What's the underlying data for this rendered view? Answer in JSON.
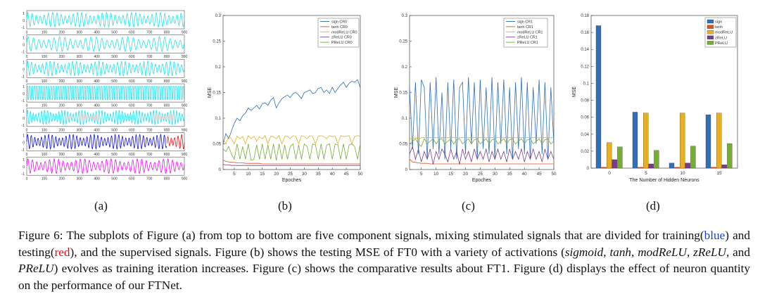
{
  "panel_labels": [
    "(a)",
    "(b)",
    "(c)",
    "(d)"
  ],
  "caption": {
    "fig_label": "Figure 6:",
    "part1": " The subplots of Figure (a) from top to bottom are five component signals, mixing stimulated signals that are divided for training(",
    "blue_word": "blue",
    "part2": ") and testing(",
    "red_word": "red",
    "part3": "), and the supervised signals. Figure (b) shows the testing MSE of FT0 with a variety of activations (",
    "act_sigmoid": "sigmoid",
    "sep1": ", ",
    "act_tanh": "tanh",
    "sep2": ", ",
    "act_modrelu": "modReLU",
    "sep3": ", ",
    "act_zrelu": "zReLU",
    "sep4": ", and ",
    "act_prelu": "PReLU",
    "part4": ") evolves as training iteration increases. Figure (c) shows the comparative results about FT1. Figure (d) displays the effect of neuron quantity on the performance of our FTNet."
  },
  "colors": {
    "cyan": "#22e0ee",
    "blue": "#1010e0",
    "red": "#ee1010",
    "magenta": "#ee10ee",
    "sign": "#2f6fb8",
    "tanh": "#e0501a",
    "modrelu": "#e8b020",
    "zrelu": "#7a3b8f",
    "prelu": "#77ad33"
  },
  "chart_data": [
    {
      "type": "line",
      "panel": "a",
      "subplots": 7,
      "x_ticks": [
        "0",
        "100",
        "200",
        "300",
        "400",
        "500",
        "600",
        "700",
        "800",
        "900"
      ],
      "y_ticks": [
        "1",
        "0",
        "-1"
      ],
      "xlim": [
        0,
        900
      ],
      "series_colors": [
        "cyan",
        "cyan",
        "cyan",
        "cyan",
        "cyan",
        "blue+red",
        "magenta"
      ],
      "split_at": 800
    },
    {
      "type": "line",
      "panel": "b",
      "xlabel": "Epoches",
      "ylabel": "MSE",
      "xlim": [
        1,
        50
      ],
      "ylim": [
        0,
        0.3
      ],
      "x_ticks": [
        5,
        10,
        15,
        20,
        25,
        30,
        35,
        40,
        45,
        50
      ],
      "y_ticks": [
        "0",
        "0.05",
        "0.1",
        "0.15",
        "0.2",
        "0.25",
        "0.3"
      ],
      "legend_position": "top-right",
      "series": [
        {
          "name": "sign CR0",
          "color": "sign",
          "values": [
            0.05,
            0.07,
            0.06,
            0.075,
            0.09,
            0.1,
            0.095,
            0.105,
            0.11,
            0.12,
            0.115,
            0.12,
            0.125,
            0.118,
            0.128,
            0.13,
            0.125,
            0.135,
            0.14,
            0.12,
            0.13,
            0.138,
            0.142,
            0.145,
            0.14,
            0.148,
            0.15,
            0.145,
            0.138,
            0.15,
            0.152,
            0.155,
            0.148,
            0.15,
            0.158,
            0.16,
            0.15,
            0.155,
            0.148,
            0.16,
            0.15,
            0.158,
            0.165,
            0.17,
            0.16,
            0.168,
            0.172,
            0.17,
            0.175,
            0.16
          ]
        },
        {
          "name": "tanh CR0",
          "color": "tanh",
          "values": [
            0.018,
            0.016,
            0.015,
            0.014,
            0.014,
            0.013,
            0.013,
            0.013,
            0.012,
            0.012,
            0.012,
            0.012,
            0.012,
            0.012,
            0.011,
            0.011,
            0.011,
            0.011,
            0.011,
            0.011,
            0.011,
            0.011,
            0.011,
            0.011,
            0.011,
            0.011,
            0.011,
            0.011,
            0.011,
            0.011,
            0.011,
            0.011,
            0.011,
            0.011,
            0.011,
            0.011,
            0.011,
            0.011,
            0.011,
            0.011,
            0.011,
            0.011,
            0.011,
            0.011,
            0.011,
            0.011,
            0.011,
            0.011,
            0.011,
            0.011
          ]
        },
        {
          "name": "modReLU CR0",
          "color": "modrelu",
          "values": [
            0.06,
            0.05,
            0.065,
            0.06,
            0.05,
            0.065,
            0.06,
            0.064,
            0.05,
            0.066,
            0.06,
            0.065,
            0.055,
            0.064,
            0.06,
            0.066,
            0.05,
            0.065,
            0.064,
            0.06,
            0.066,
            0.05,
            0.064,
            0.065,
            0.06,
            0.066,
            0.064,
            0.05,
            0.066,
            0.064,
            0.06,
            0.066,
            0.064,
            0.05,
            0.065,
            0.066,
            0.064,
            0.06,
            0.066,
            0.064,
            0.065,
            0.05,
            0.066,
            0.064,
            0.065,
            0.066,
            0.05,
            0.064,
            0.066,
            0.065
          ]
        },
        {
          "name": "zReLU CR0",
          "color": "zrelu",
          "values": [
            0.01,
            0.009,
            0.009,
            0.008,
            0.008,
            0.008,
            0.008,
            0.008,
            0.008,
            0.008,
            0.008,
            0.008,
            0.008,
            0.008,
            0.008,
            0.008,
            0.008,
            0.008,
            0.008,
            0.008,
            0.008,
            0.008,
            0.008,
            0.008,
            0.008,
            0.008,
            0.008,
            0.008,
            0.008,
            0.008,
            0.008,
            0.008,
            0.008,
            0.008,
            0.008,
            0.008,
            0.008,
            0.008,
            0.008,
            0.008,
            0.008,
            0.008,
            0.008,
            0.008,
            0.008,
            0.008,
            0.008,
            0.008,
            0.008,
            0.008
          ]
        },
        {
          "name": "PReLU CR0",
          "color": "prelu",
          "values": [
            0.04,
            0.035,
            0.045,
            0.03,
            0.02,
            0.05,
            0.02,
            0.045,
            0.02,
            0.05,
            0.018,
            0.02,
            0.048,
            0.02,
            0.05,
            0.02,
            0.048,
            0.02,
            0.05,
            0.018,
            0.05,
            0.02,
            0.048,
            0.02,
            0.045,
            0.05,
            0.02,
            0.048,
            0.02,
            0.05,
            0.045,
            0.02,
            0.05,
            0.048,
            0.02,
            0.05,
            0.02,
            0.048,
            0.05,
            0.02,
            0.05,
            0.048,
            0.02,
            0.05,
            0.02,
            0.048,
            0.05,
            0.045,
            0.02,
            0.05
          ]
        }
      ]
    },
    {
      "type": "line",
      "panel": "c",
      "xlabel": "Epoches",
      "ylabel": "MSE",
      "xlim": [
        1,
        50
      ],
      "ylim": [
        0,
        0.3
      ],
      "x_ticks": [
        5,
        10,
        15,
        20,
        25,
        30,
        35,
        40,
        45,
        50
      ],
      "y_ticks": [
        "0",
        "0.05",
        "0.1",
        "0.15",
        "0.2",
        "0.25",
        "0.3"
      ],
      "legend_position": "top-right",
      "series": [
        {
          "name": "sign CR1",
          "color": "sign",
          "values": [
            0.16,
            0.04,
            0.17,
            0.03,
            0.175,
            0.16,
            0.02,
            0.17,
            0.04,
            0.18,
            0.03,
            0.15,
            0.02,
            0.17,
            0.04,
            0.175,
            0.02,
            0.16,
            0.17,
            0.03,
            0.18,
            0.05,
            0.17,
            0.02,
            0.175,
            0.04,
            0.16,
            0.03,
            0.18,
            0.02,
            0.17,
            0.05,
            0.175,
            0.03,
            0.16,
            0.02,
            0.17,
            0.04,
            0.18,
            0.03,
            0.17,
            0.02,
            0.16,
            0.05,
            0.175,
            0.03,
            0.17,
            0.02,
            0.16,
            0.05
          ]
        },
        {
          "name": "tanh CR1",
          "color": "tanh",
          "values": [
            0.02,
            0.015,
            0.014,
            0.013,
            0.012,
            0.012,
            0.012,
            0.011,
            0.011,
            0.011,
            0.011,
            0.011,
            0.011,
            0.011,
            0.011,
            0.011,
            0.011,
            0.011,
            0.011,
            0.011,
            0.011,
            0.011,
            0.011,
            0.011,
            0.011,
            0.011,
            0.011,
            0.011,
            0.011,
            0.011,
            0.011,
            0.011,
            0.011,
            0.011,
            0.011,
            0.011,
            0.011,
            0.011,
            0.011,
            0.011,
            0.011,
            0.011,
            0.011,
            0.011,
            0.011,
            0.011,
            0.011,
            0.011,
            0.011,
            0.011
          ]
        },
        {
          "name": "modReLU CR1",
          "color": "modrelu",
          "values": [
            0.06,
            0.06,
            0.062,
            0.06,
            0.062,
            0.062,
            0.062,
            0.062,
            0.062,
            0.062,
            0.062,
            0.062,
            0.062,
            0.062,
            0.062,
            0.062,
            0.062,
            0.062,
            0.062,
            0.062,
            0.062,
            0.062,
            0.062,
            0.062,
            0.062,
            0.062,
            0.062,
            0.062,
            0.062,
            0.062,
            0.062,
            0.062,
            0.062,
            0.062,
            0.062,
            0.062,
            0.062,
            0.062,
            0.062,
            0.062,
            0.062,
            0.062,
            0.062,
            0.062,
            0.062,
            0.062,
            0.062,
            0.062,
            0.062,
            0.062
          ]
        },
        {
          "name": "zReLU CR1",
          "color": "zrelu",
          "values": [
            0.03,
            0.045,
            0.02,
            0.04,
            0.015,
            0.035,
            0.02,
            0.04,
            0.01,
            0.035,
            0.02,
            0.04,
            0.03,
            0.015,
            0.04,
            0.02,
            0.035,
            0.01,
            0.04,
            0.02,
            0.035,
            0.015,
            0.04,
            0.02,
            0.035,
            0.02,
            0.04,
            0.015,
            0.035,
            0.02,
            0.04,
            0.02,
            0.035,
            0.015,
            0.04,
            0.02,
            0.035,
            0.02,
            0.04,
            0.015,
            0.035,
            0.02,
            0.04,
            0.02,
            0.035,
            0.015,
            0.04,
            0.02,
            0.035,
            0.02
          ]
        },
        {
          "name": "PReLU CR1",
          "color": "prelu",
          "values": [
            0.05,
            0.055,
            0.06,
            0.05,
            0.045,
            0.06,
            0.05,
            0.055,
            0.06,
            0.05,
            0.058,
            0.06,
            0.05,
            0.055,
            0.06,
            0.05,
            0.058,
            0.06,
            0.05,
            0.055,
            0.06,
            0.05,
            0.058,
            0.06,
            0.05,
            0.055,
            0.06,
            0.05,
            0.058,
            0.06,
            0.05,
            0.055,
            0.06,
            0.05,
            0.058,
            0.06,
            0.05,
            0.055,
            0.06,
            0.05,
            0.058,
            0.06,
            0.05,
            0.055,
            0.06,
            0.05,
            0.058,
            0.06,
            0.05,
            0.055
          ]
        }
      ]
    },
    {
      "type": "bar",
      "panel": "d",
      "xlabel": "The Number of Hidden Neurons",
      "ylabel": "MSE",
      "categories": [
        "0",
        "5",
        "10",
        "15"
      ],
      "ylim": [
        0,
        0.18
      ],
      "y_ticks": [
        "0",
        "0.02",
        "0.04",
        "0.06",
        "0.08",
        "0.1",
        "0.12",
        "0.14",
        "0.16",
        "0.18"
      ],
      "legend_position": "top-right",
      "series": [
        {
          "name": "sign",
          "color": "sign",
          "values": [
            0.168,
            0.066,
            0.006,
            0.063
          ]
        },
        {
          "name": "tanh",
          "color": "tanh",
          "values": [
            0.001,
            0.001,
            0.001,
            0.001
          ]
        },
        {
          "name": "modReLU",
          "color": "modrelu",
          "values": [
            0.03,
            0.065,
            0.065,
            0.065
          ]
        },
        {
          "name": "zReLU",
          "color": "zrelu",
          "values": [
            0.01,
            0.005,
            0.006,
            0.004
          ]
        },
        {
          "name": "PReLU",
          "color": "prelu",
          "values": [
            0.025,
            0.021,
            0.026,
            0.029
          ]
        }
      ]
    }
  ]
}
